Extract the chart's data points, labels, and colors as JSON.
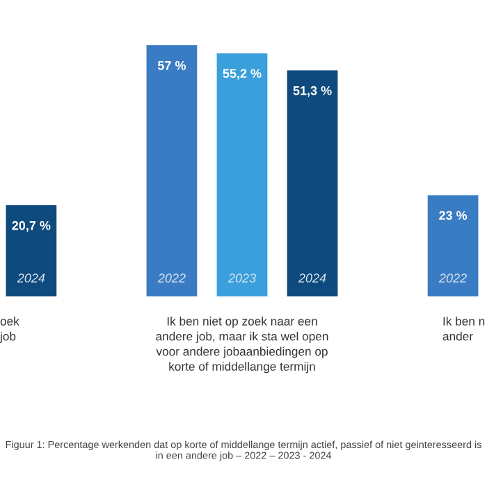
{
  "chart_data": {
    "type": "bar",
    "categories": [
      "oek\njob",
      "Ik ben niet op zoek naar een\nandere job, maar ik sta wel open\nvoor andere jobaanbiedingen op\nkorte of middellange termijn",
      "Ik ben n\nander"
    ],
    "series": [
      {
        "name": "2022",
        "color": "#3a7cc3",
        "values": [
          null,
          57,
          23
        ],
        "value_labels": [
          null,
          "57 %",
          "23 %"
        ]
      },
      {
        "name": "2023",
        "color": "#3a9fdb",
        "values": [
          null,
          55.2,
          null
        ],
        "value_labels": [
          null,
          "55,2 %",
          null
        ]
      },
      {
        "name": "2024",
        "color": "#0e4a7d",
        "values": [
          20.7,
          51.3,
          null
        ],
        "value_labels": [
          "20,7 %",
          "51,3 %",
          null
        ]
      }
    ],
    "legend": false,
    "annotations": [
      "Figuur 1: Percentage werkenden dat op korte of middellange termijn actief, passief of niet geinteresseerd is in een andere job – 2022 – 2023 - 2024"
    ]
  }
}
